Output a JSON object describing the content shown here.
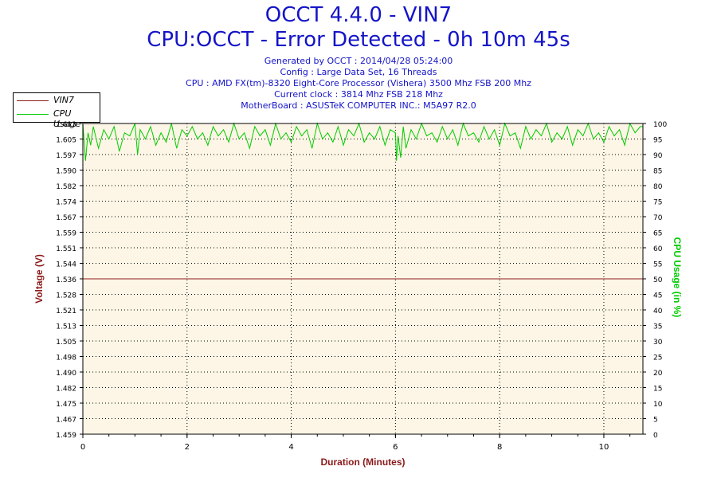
{
  "header": {
    "title": "OCCT 4.4.0 - VIN7",
    "subtitle": "CPU:OCCT - Error Detected - 0h 10m 45s",
    "info_lines": [
      "Generated by OCCT : 2014/04/28 05:24:00",
      "Config : Large Data Set, 16 Threads",
      "CPU : AMD FX(tm)-8320 Eight-Core Processor (Vishera) 3500 Mhz FSB 200 Mhz",
      "Current clock : 3814 Mhz FSB 218 Mhz",
      "MotherBoard : ASUSTeK COMPUTER INC.: M5A97 R2.0"
    ]
  },
  "legend": {
    "items": [
      {
        "label": "VIN7",
        "color": "#8b1a1a"
      },
      {
        "label": "CPU Usage",
        "color": "#00cc00"
      }
    ]
  },
  "chart_data": {
    "type": "line",
    "xlabel": "Duration (Minutes)",
    "ylabel": "Voltage (V)",
    "y2label": "CPU Usage (in %)",
    "xlim": [
      0,
      10.75
    ],
    "xticks": [
      0,
      2,
      4,
      6,
      8,
      10
    ],
    "ylim": [
      1.459,
      1.613
    ],
    "yticks": [
      "1.459",
      "1.467",
      "1.475",
      "1.482",
      "1.490",
      "1.498",
      "1.505",
      "1.513",
      "1.521",
      "1.528",
      "1.536",
      "1.544",
      "1.551",
      "1.559",
      "1.567",
      "1.574",
      "1.582",
      "1.590",
      "1.597",
      "1.605",
      "1.613"
    ],
    "y2lim": [
      0,
      100
    ],
    "y2ticks": [
      0,
      5,
      10,
      15,
      20,
      25,
      30,
      35,
      40,
      45,
      50,
      55,
      60,
      65,
      70,
      75,
      80,
      85,
      90,
      95,
      100
    ],
    "grid": true,
    "series": [
      {
        "name": "VIN7",
        "axis": "left",
        "color": "#8b1a1a",
        "x": [
          0,
          10.75
        ],
        "values": [
          1.536,
          1.536
        ]
      },
      {
        "name": "CPU Usage",
        "axis": "right",
        "color": "#00cc00",
        "x": [
          0,
          0.05,
          0.1,
          0.15,
          0.2,
          0.3,
          0.4,
          0.5,
          0.6,
          0.7,
          0.8,
          0.9,
          1.0,
          1.05,
          1.1,
          1.2,
          1.3,
          1.4,
          1.5,
          1.6,
          1.7,
          1.8,
          1.9,
          2.0,
          2.1,
          2.2,
          2.3,
          2.4,
          2.5,
          2.6,
          2.7,
          2.8,
          2.9,
          3.0,
          3.1,
          3.2,
          3.3,
          3.4,
          3.5,
          3.6,
          3.7,
          3.8,
          3.9,
          4.0,
          4.1,
          4.2,
          4.3,
          4.4,
          4.5,
          4.6,
          4.7,
          4.8,
          4.9,
          5.0,
          5.1,
          5.2,
          5.3,
          5.4,
          5.5,
          5.6,
          5.7,
          5.8,
          5.9,
          6.0,
          6.02,
          6.05,
          6.1,
          6.15,
          6.2,
          6.3,
          6.4,
          6.5,
          6.6,
          6.7,
          6.8,
          6.9,
          7.0,
          7.1,
          7.2,
          7.3,
          7.4,
          7.5,
          7.6,
          7.7,
          7.8,
          7.9,
          8.0,
          8.1,
          8.2,
          8.3,
          8.4,
          8.5,
          8.6,
          8.7,
          8.8,
          8.9,
          9.0,
          9.1,
          9.2,
          9.3,
          9.4,
          9.5,
          9.6,
          9.7,
          9.8,
          9.9,
          10.0,
          10.1,
          10.2,
          10.3,
          10.4,
          10.5,
          10.6,
          10.7,
          10.75
        ],
        "values": [
          100,
          88,
          97,
          93,
          99,
          92,
          98,
          95,
          99,
          91,
          97,
          96,
          100,
          90,
          98,
          95,
          99,
          93,
          97,
          94,
          100,
          92,
          98,
          96,
          99,
          95,
          97,
          93,
          99,
          96,
          98,
          94,
          100,
          95,
          97,
          92,
          99,
          96,
          98,
          93,
          100,
          95,
          97,
          94,
          99,
          96,
          98,
          92,
          100,
          95,
          97,
          94,
          99,
          93,
          98,
          96,
          100,
          94,
          97,
          95,
          99,
          93,
          98,
          97,
          88,
          96,
          89,
          99,
          92,
          98,
          95,
          100,
          96,
          97,
          94,
          99,
          95,
          98,
          93,
          100,
          96,
          97,
          94,
          99,
          95,
          98,
          93,
          100,
          96,
          97,
          92,
          99,
          95,
          98,
          96,
          100,
          94,
          97,
          95,
          99,
          93,
          98,
          96,
          100,
          95,
          97,
          94,
          99,
          96,
          98,
          93,
          100,
          97,
          99,
          99
        ]
      }
    ]
  }
}
